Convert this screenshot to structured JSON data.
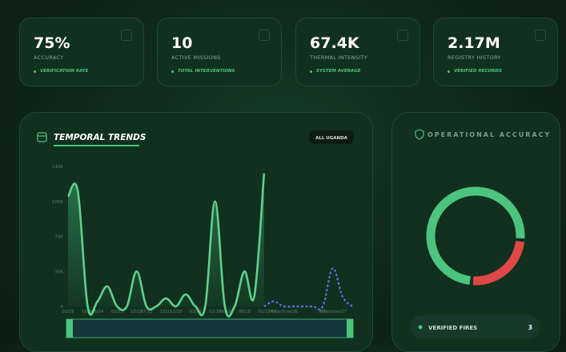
{
  "kpis": [
    {
      "value": "75%",
      "label": "ACCURACY",
      "note": "VERIFICATION RATE"
    },
    {
      "value": "10",
      "label": "ACTIVE MISSIONS",
      "note": "TOTAL INTERVENTIONS"
    },
    {
      "value": "67.4K",
      "label": "THERMAL INTENSITY",
      "note": "SYSTEM AVERAGE"
    },
    {
      "value": "2.17M",
      "label": "REGISTRY HISTORY",
      "note": "VERIFIED RECORDS"
    }
  ],
  "chart_data": [
    {
      "type": "line",
      "title": "TEMPORAL TRENDS",
      "filter": "ALL UGANDA",
      "categories": [
        "02/25",
        null,
        "10/24",
        "06/24",
        null,
        "02/23",
        null,
        "10/23",
        "07/22",
        null,
        "12/21",
        "12/20",
        null,
        "03/20",
        null,
        "01/19",
        "06/18",
        null,
        "06/15",
        null,
        "01/15",
        "07",
        "Projection/26",
        null,
        null,
        null,
        "03",
        "Projection/27",
        null,
        null
      ],
      "series": [
        {
          "color": "#5fd08c",
          "values": [
            110000,
            115000,
            0,
            5000,
            20000,
            0,
            0,
            35000,
            0,
            0,
            8000,
            0,
            12000,
            0,
            0,
            105000,
            0,
            0,
            35000,
            10000,
            133000,
            null,
            null,
            null,
            null,
            null,
            null,
            null,
            null,
            null
          ]
        },
        {
          "color": "#5b6ee8",
          "dashed": true,
          "values": [
            null,
            null,
            null,
            null,
            null,
            null,
            null,
            null,
            null,
            null,
            null,
            null,
            null,
            null,
            null,
            null,
            null,
            null,
            null,
            null,
            0,
            5000,
            0,
            0,
            0,
            0,
            0,
            38000,
            10000,
            0
          ]
        }
      ],
      "ylim": [
        0,
        140000
      ],
      "yticks": [
        {
          "value": 0,
          "label": "0"
        },
        {
          "value": 35000,
          "label": "35K"
        },
        {
          "value": 70000,
          "label": "70K"
        },
        {
          "value": 105000,
          "label": "105K"
        },
        {
          "value": 140000,
          "label": "140K"
        }
      ]
    },
    {
      "type": "pie",
      "title": "OPERATIONAL ACCURACY",
      "values": [
        75,
        25
      ],
      "colors": [
        "#4cc47f",
        "#e04848"
      ],
      "legend": [
        {
          "name": "VERIFIED FIRES",
          "value": 3
        }
      ]
    }
  ]
}
